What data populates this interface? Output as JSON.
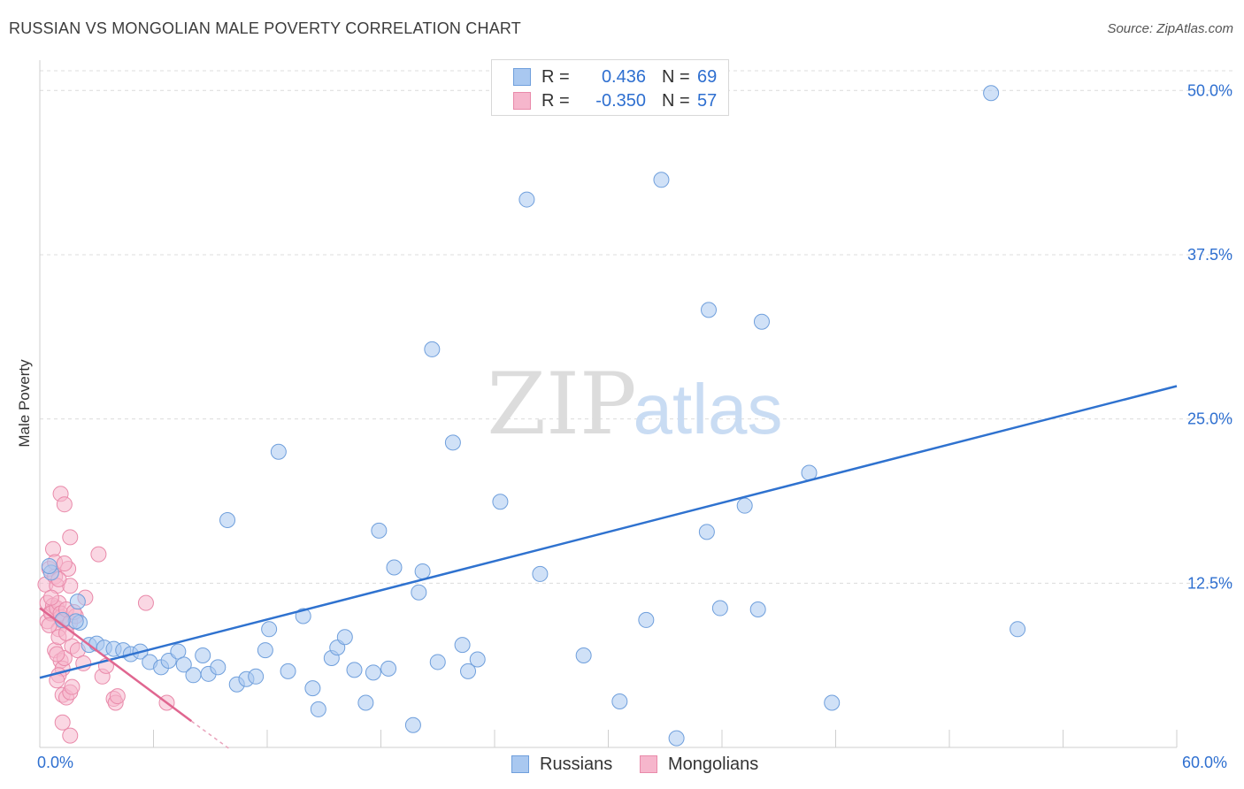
{
  "title": "RUSSIAN VS MONGOLIAN MALE POVERTY CORRELATION CHART",
  "source": "Source: ZipAtlas.com",
  "watermark": {
    "zip": "ZIP",
    "atlas": "atlas"
  },
  "legend": {
    "rows": [
      {
        "r_label": "R =",
        "r_value": "0.436",
        "n_label": "N =",
        "n_value": "69"
      },
      {
        "r_label": "R =",
        "r_value": "-0.350",
        "n_label": "N =",
        "n_value": "57"
      }
    ],
    "series_names": [
      "Russians",
      "Mongolians"
    ]
  },
  "colors": {
    "blue_fill": "#a9c8f0",
    "blue_stroke": "#6f9fdc",
    "blue_line": "#2f72cf",
    "pink_fill": "#f6b6cc",
    "pink_stroke": "#e98aaa",
    "pink_line": "#e06690",
    "tick_label": "#2e6fd0",
    "grid": "#dcdcdc"
  },
  "chart_data": {
    "type": "scatter",
    "title": "RUSSIAN VS MONGOLIAN MALE POVERTY CORRELATION CHART",
    "xlabel": "",
    "ylabel": "Male Poverty",
    "xlim": [
      0,
      60
    ],
    "ylim": [
      0,
      51.5
    ],
    "x_tick_labels": [
      "0.0%",
      "60.0%"
    ],
    "y_ticks": [
      12.5,
      25.0,
      37.5,
      50.0
    ],
    "y_tick_labels": [
      "12.5%",
      "25.0%",
      "37.5%",
      "50.0%"
    ],
    "grid": true,
    "series": [
      {
        "name": "Russians",
        "r": 0.436,
        "n": 69,
        "trend": {
          "x": [
            0,
            60
          ],
          "y": [
            5.3,
            27.5
          ]
        },
        "points": [
          [
            2.1,
            9.5
          ],
          [
            2.0,
            11.1
          ],
          [
            1.9,
            9.6
          ],
          [
            1.2,
            9.7
          ],
          [
            0.6,
            13.3
          ],
          [
            0.5,
            13.8
          ],
          [
            2.6,
            7.8
          ],
          [
            3.0,
            7.9
          ],
          [
            3.4,
            7.6
          ],
          [
            3.9,
            7.5
          ],
          [
            4.4,
            7.4
          ],
          [
            4.8,
            7.1
          ],
          [
            5.3,
            7.3
          ],
          [
            5.8,
            6.5
          ],
          [
            6.4,
            6.1
          ],
          [
            6.8,
            6.6
          ],
          [
            7.3,
            7.3
          ],
          [
            7.6,
            6.3
          ],
          [
            8.1,
            5.5
          ],
          [
            8.6,
            7.0
          ],
          [
            8.9,
            5.6
          ],
          [
            9.4,
            6.1
          ],
          [
            9.9,
            17.3
          ],
          [
            10.4,
            4.8
          ],
          [
            10.9,
            5.2
          ],
          [
            11.4,
            5.4
          ],
          [
            11.9,
            7.4
          ],
          [
            12.1,
            9.0
          ],
          [
            12.6,
            22.5
          ],
          [
            13.1,
            5.8
          ],
          [
            13.9,
            10.0
          ],
          [
            14.4,
            4.5
          ],
          [
            14.7,
            2.9
          ],
          [
            15.4,
            6.8
          ],
          [
            15.7,
            7.6
          ],
          [
            16.1,
            8.4
          ],
          [
            16.6,
            5.9
          ],
          [
            17.2,
            3.4
          ],
          [
            17.6,
            5.7
          ],
          [
            17.9,
            16.5
          ],
          [
            18.4,
            6.0
          ],
          [
            18.7,
            13.7
          ],
          [
            19.7,
            1.7
          ],
          [
            20.0,
            11.8
          ],
          [
            20.2,
            13.4
          ],
          [
            20.7,
            30.3
          ],
          [
            21.0,
            6.5
          ],
          [
            21.8,
            23.2
          ],
          [
            22.3,
            7.8
          ],
          [
            22.6,
            5.8
          ],
          [
            23.1,
            6.7
          ],
          [
            24.3,
            18.7
          ],
          [
            25.7,
            41.7
          ],
          [
            26.4,
            13.2
          ],
          [
            28.7,
            7.0
          ],
          [
            30.6,
            3.5
          ],
          [
            32.0,
            9.7
          ],
          [
            33.6,
            0.7
          ],
          [
            32.8,
            43.2
          ],
          [
            35.3,
            33.3
          ],
          [
            35.2,
            16.4
          ],
          [
            35.9,
            10.6
          ],
          [
            37.2,
            18.4
          ],
          [
            37.9,
            10.5
          ],
          [
            38.1,
            32.4
          ],
          [
            40.6,
            20.9
          ],
          [
            41.8,
            3.4
          ],
          [
            50.2,
            49.8
          ],
          [
            51.6,
            9.0
          ]
        ]
      },
      {
        "name": "Mongolians",
        "r": -0.35,
        "n": 57,
        "trend": {
          "x": [
            0,
            8.0
          ],
          "y": [
            10.6,
            2.0
          ]
        },
        "trend_dashed": {
          "x": [
            8.0,
            10.0
          ],
          "y": [
            2.0,
            -0.1
          ]
        },
        "points": [
          [
            0.3,
            12.4
          ],
          [
            0.4,
            11.0
          ],
          [
            0.5,
            13.6
          ],
          [
            0.4,
            9.6
          ],
          [
            0.6,
            10.3
          ],
          [
            0.7,
            15.1
          ],
          [
            0.8,
            14.1
          ],
          [
            0.8,
            13.0
          ],
          [
            0.9,
            12.3
          ],
          [
            0.7,
            10.8
          ],
          [
            0.6,
            10.2
          ],
          [
            0.9,
            10.6
          ],
          [
            1.0,
            11.0
          ],
          [
            1.1,
            9.9
          ],
          [
            1.1,
            10.2
          ],
          [
            1.2,
            9.6
          ],
          [
            1.0,
            9.0
          ],
          [
            0.8,
            7.4
          ],
          [
            1.0,
            8.4
          ],
          [
            1.1,
            6.6
          ],
          [
            1.2,
            6.0
          ],
          [
            1.3,
            6.8
          ],
          [
            1.0,
            5.5
          ],
          [
            0.9,
            5.1
          ],
          [
            1.2,
            4.0
          ],
          [
            1.4,
            3.8
          ],
          [
            1.1,
            19.3
          ],
          [
            1.3,
            18.5
          ],
          [
            1.6,
            16.0
          ],
          [
            1.5,
            13.6
          ],
          [
            1.3,
            14.0
          ],
          [
            1.6,
            12.3
          ],
          [
            1.4,
            10.5
          ],
          [
            1.6,
            9.5
          ],
          [
            1.9,
            10.0
          ],
          [
            1.7,
            7.7
          ],
          [
            2.0,
            7.4
          ],
          [
            2.3,
            6.4
          ],
          [
            2.4,
            11.4
          ],
          [
            3.1,
            14.7
          ],
          [
            3.3,
            5.4
          ],
          [
            3.5,
            6.2
          ],
          [
            3.9,
            3.7
          ],
          [
            4.0,
            3.4
          ],
          [
            4.1,
            3.9
          ],
          [
            5.6,
            11.0
          ],
          [
            6.7,
            3.4
          ],
          [
            1.6,
            4.2
          ],
          [
            1.7,
            4.6
          ],
          [
            1.2,
            1.9
          ],
          [
            1.6,
            0.9
          ],
          [
            0.9,
            7.1
          ],
          [
            1.4,
            8.7
          ],
          [
            0.5,
            9.3
          ],
          [
            0.6,
            11.4
          ],
          [
            1.8,
            10.3
          ],
          [
            1.0,
            12.8
          ]
        ]
      }
    ]
  }
}
